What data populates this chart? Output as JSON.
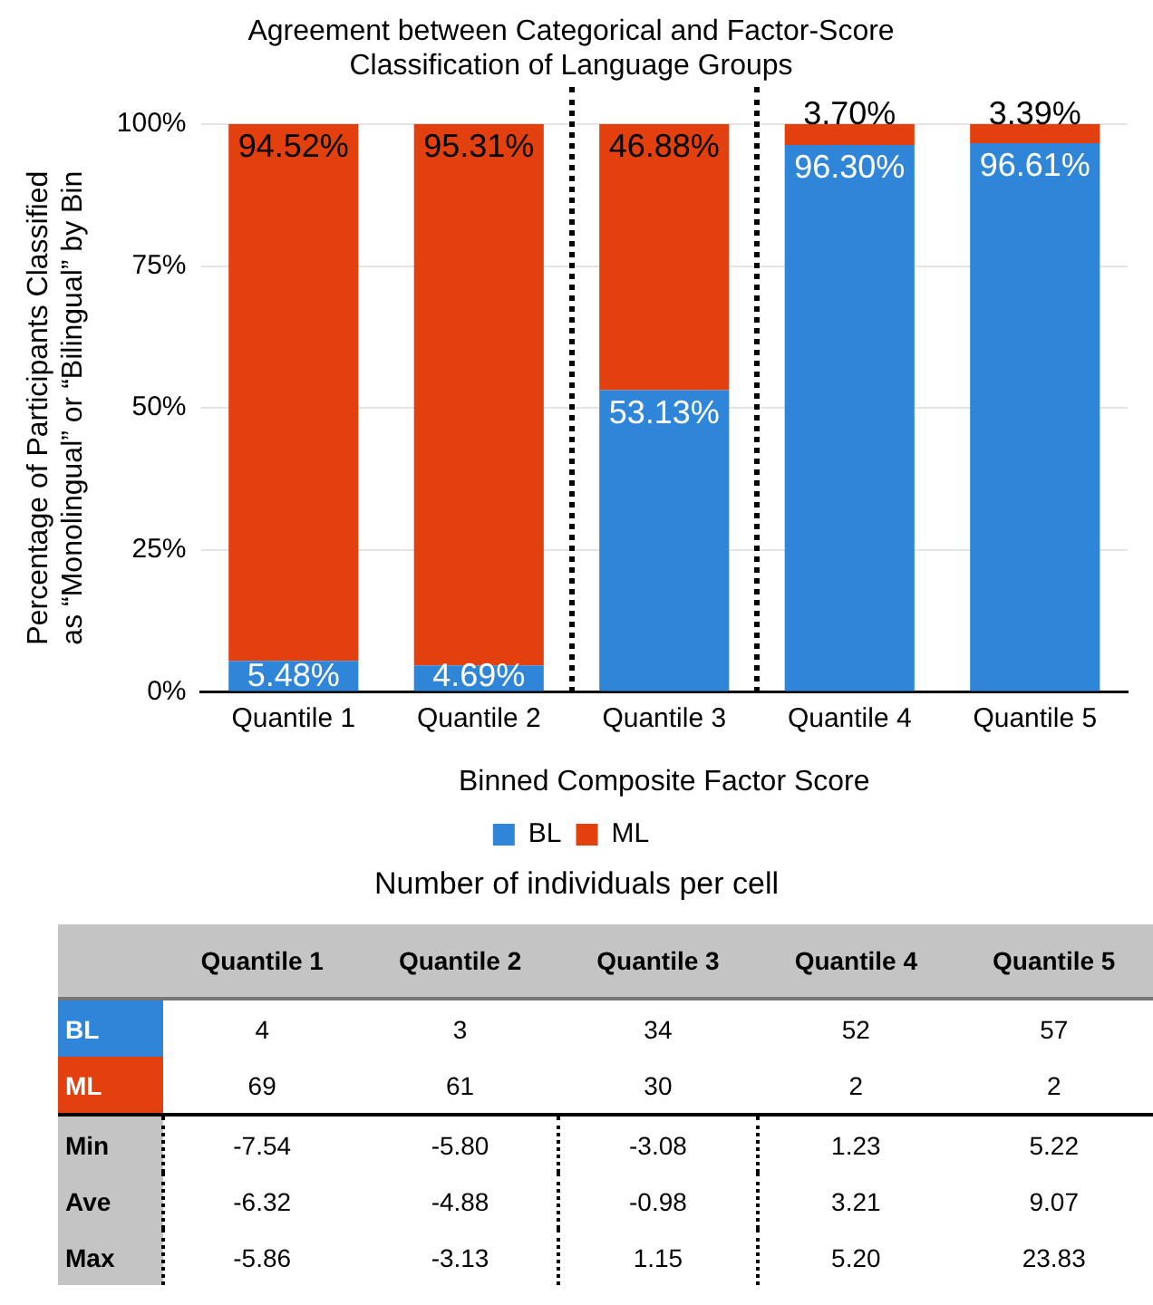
{
  "chart_data": [
    {
      "type": "bar",
      "title": "Agreement between Categorical and Factor-Score Classification of Language Groups",
      "xlabel": "Binned Composite Factor Score",
      "ylabel": "Percentage of Participants Classified as “Monolingual” or “Bilingual” by Bin",
      "categories": [
        "Quantile 1",
        "Quantile 2",
        "Quantile 3",
        "Quantile 4",
        "Quantile 5"
      ],
      "stacked": true,
      "series": [
        {
          "name": "BL",
          "color": "#2f86d8",
          "values": [
            5.48,
            4.69,
            53.13,
            96.3,
            96.61
          ],
          "value_labels": [
            "5.48%",
            "4.69%",
            "53.13%",
            "96.30%",
            "96.61%"
          ]
        },
        {
          "name": "ML",
          "color": "#e3400f",
          "values": [
            94.52,
            95.31,
            46.88,
            3.7,
            3.39
          ],
          "value_labels": [
            "94.52%",
            "95.31%",
            "46.88%",
            "3.70%",
            "3.39%"
          ]
        }
      ],
      "ylim": [
        0,
        100
      ],
      "yticks": [
        {
          "value": 0,
          "label": "0%"
        },
        {
          "value": 25,
          "label": "25%"
        },
        {
          "value": 50,
          "label": "50%"
        },
        {
          "value": 75,
          "label": "75%"
        },
        {
          "value": 100,
          "label": "100%"
        }
      ],
      "grid": "y",
      "legend": "bottom"
    },
    {
      "type": "heatmap",
      "title": "Number of individuals per cell",
      "categories": [
        "Quantile 1",
        "Quantile 2",
        "Quantile 3",
        "Quantile 4",
        "Quantile 5"
      ],
      "y_categories": [
        "BL",
        "ML",
        "Min",
        "Ave",
        "Max"
      ],
      "data_labels": true,
      "cells": [
        [
          4,
          3,
          34,
          52,
          57
        ],
        [
          69,
          61,
          30,
          2,
          2
        ],
        [
          -7.54,
          -5.8,
          -3.08,
          1.23,
          5.22
        ],
        [
          -6.32,
          -4.88,
          -0.98,
          3.21,
          9.07
        ],
        [
          -5.86,
          -3.13,
          1.15,
          5.2,
          23.83
        ]
      ],
      "cell_labels": [
        [
          "4",
          "3",
          "34",
          "52",
          "57"
        ],
        [
          "69",
          "61",
          "30",
          "2",
          "2"
        ],
        [
          "-7.54",
          "-5.80",
          "-3.08",
          "1.23",
          "5.22"
        ],
        [
          "-6.32",
          "-4.88",
          "-0.98",
          "3.21",
          "9.07"
        ],
        [
          "-5.86",
          "-3.13",
          "1.15",
          "5.20",
          "23.83"
        ]
      ]
    }
  ]
}
